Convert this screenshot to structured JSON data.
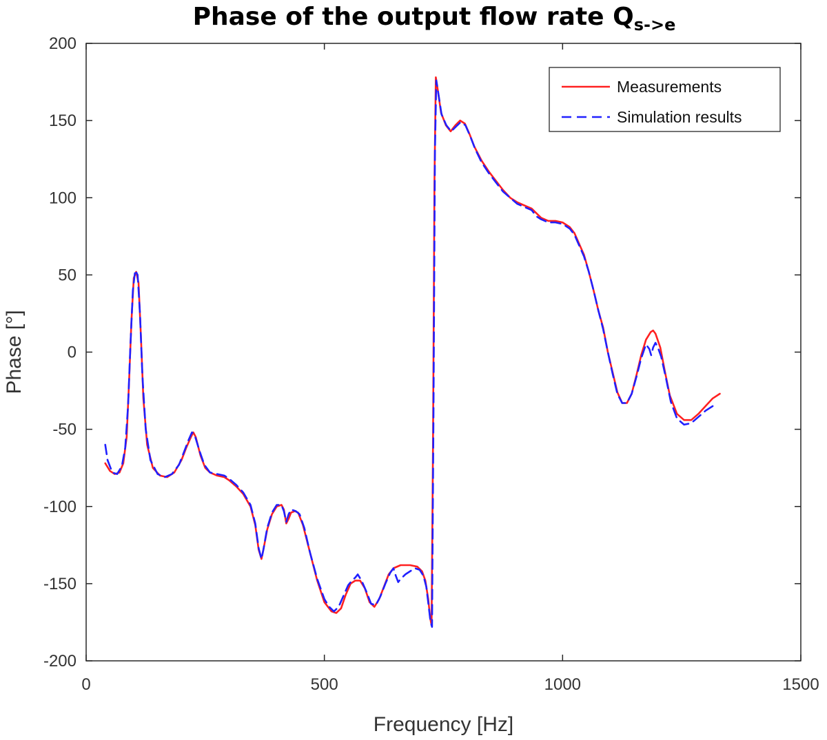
{
  "title": {
    "main": "Phase of the output flow rate Q",
    "subscript": "s->e"
  },
  "chart_data": {
    "type": "line",
    "xlabel": "Frequency [Hz]",
    "ylabel": "Phase [°]",
    "xlim": [
      0,
      1500
    ],
    "ylim": [
      -200,
      200
    ],
    "xticks": [
      0,
      500,
      1000,
      1500
    ],
    "yticks": [
      -200,
      -150,
      -100,
      -50,
      0,
      50,
      100,
      150,
      200
    ],
    "grid": false,
    "legend_position": "top-right",
    "series": [
      {
        "name": "Measurements",
        "color": "#ff2020",
        "style": "solid",
        "points": [
          [
            40,
            -72
          ],
          [
            50,
            -77
          ],
          [
            60,
            -79
          ],
          [
            70,
            -78
          ],
          [
            78,
            -72
          ],
          [
            85,
            -55
          ],
          [
            90,
            -20
          ],
          [
            95,
            20
          ],
          [
            100,
            48
          ],
          [
            105,
            52
          ],
          [
            110,
            45
          ],
          [
            115,
            10
          ],
          [
            120,
            -30
          ],
          [
            128,
            -60
          ],
          [
            140,
            -75
          ],
          [
            155,
            -80
          ],
          [
            170,
            -81
          ],
          [
            185,
            -78
          ],
          [
            200,
            -70
          ],
          [
            210,
            -62
          ],
          [
            220,
            -55
          ],
          [
            225,
            -52
          ],
          [
            230,
            -55
          ],
          [
            240,
            -67
          ],
          [
            250,
            -75
          ],
          [
            260,
            -78
          ],
          [
            275,
            -80
          ],
          [
            290,
            -81
          ],
          [
            300,
            -83
          ],
          [
            315,
            -87
          ],
          [
            330,
            -92
          ],
          [
            345,
            -100
          ],
          [
            355,
            -112
          ],
          [
            362,
            -128
          ],
          [
            368,
            -134
          ],
          [
            372,
            -128
          ],
          [
            380,
            -115
          ],
          [
            390,
            -105
          ],
          [
            400,
            -100
          ],
          [
            410,
            -99
          ],
          [
            415,
            -102
          ],
          [
            420,
            -111
          ],
          [
            425,
            -108
          ],
          [
            430,
            -104
          ],
          [
            438,
            -103
          ],
          [
            445,
            -104
          ],
          [
            455,
            -112
          ],
          [
            470,
            -130
          ],
          [
            485,
            -148
          ],
          [
            500,
            -162
          ],
          [
            515,
            -168
          ],
          [
            525,
            -169
          ],
          [
            535,
            -166
          ],
          [
            545,
            -157
          ],
          [
            555,
            -150
          ],
          [
            565,
            -148
          ],
          [
            575,
            -148
          ],
          [
            585,
            -153
          ],
          [
            595,
            -162
          ],
          [
            605,
            -165
          ],
          [
            615,
            -160
          ],
          [
            625,
            -152
          ],
          [
            635,
            -144
          ],
          [
            645,
            -140
          ],
          [
            660,
            -138
          ],
          [
            680,
            -138
          ],
          [
            695,
            -139
          ],
          [
            705,
            -142
          ],
          [
            712,
            -148
          ],
          [
            718,
            -160
          ],
          [
            722,
            -172
          ],
          [
            725,
            -177
          ],
          [
            728,
            -60
          ],
          [
            731,
            110
          ],
          [
            734,
            178
          ],
          [
            738,
            170
          ],
          [
            745,
            155
          ],
          [
            755,
            147
          ],
          [
            765,
            143
          ],
          [
            775,
            147
          ],
          [
            785,
            150
          ],
          [
            795,
            148
          ],
          [
            805,
            141
          ],
          [
            815,
            133
          ],
          [
            830,
            124
          ],
          [
            845,
            117
          ],
          [
            860,
            111
          ],
          [
            875,
            105
          ],
          [
            890,
            100
          ],
          [
            905,
            97
          ],
          [
            920,
            95
          ],
          [
            935,
            93
          ],
          [
            945,
            90
          ],
          [
            955,
            87
          ],
          [
            970,
            85
          ],
          [
            985,
            85
          ],
          [
            1000,
            84
          ],
          [
            1015,
            81
          ],
          [
            1025,
            77
          ],
          [
            1035,
            70
          ],
          [
            1045,
            63
          ],
          [
            1055,
            52
          ],
          [
            1065,
            40
          ],
          [
            1075,
            27
          ],
          [
            1085,
            16
          ],
          [
            1095,
            0
          ],
          [
            1105,
            -13
          ],
          [
            1115,
            -26
          ],
          [
            1125,
            -33
          ],
          [
            1135,
            -33
          ],
          [
            1145,
            -27
          ],
          [
            1155,
            -15
          ],
          [
            1165,
            -2
          ],
          [
            1175,
            8
          ],
          [
            1185,
            13
          ],
          [
            1190,
            14
          ],
          [
            1195,
            12
          ],
          [
            1205,
            3
          ],
          [
            1215,
            -13
          ],
          [
            1225,
            -28
          ],
          [
            1240,
            -40
          ],
          [
            1255,
            -44
          ],
          [
            1270,
            -44
          ],
          [
            1285,
            -40
          ],
          [
            1300,
            -35
          ],
          [
            1315,
            -30
          ],
          [
            1330,
            -27
          ]
        ]
      },
      {
        "name": "Simulation results",
        "color": "#2020ff",
        "style": "dashed",
        "points": [
          [
            40,
            -60
          ],
          [
            45,
            -70
          ],
          [
            55,
            -78
          ],
          [
            65,
            -79
          ],
          [
            75,
            -74
          ],
          [
            82,
            -62
          ],
          [
            88,
            -35
          ],
          [
            93,
            5
          ],
          [
            98,
            40
          ],
          [
            103,
            53
          ],
          [
            108,
            50
          ],
          [
            113,
            25
          ],
          [
            118,
            -15
          ],
          [
            125,
            -50
          ],
          [
            135,
            -70
          ],
          [
            150,
            -79
          ],
          [
            165,
            -81
          ],
          [
            180,
            -79
          ],
          [
            195,
            -73
          ],
          [
            205,
            -65
          ],
          [
            215,
            -57
          ],
          [
            222,
            -52
          ],
          [
            228,
            -54
          ],
          [
            238,
            -64
          ],
          [
            248,
            -73
          ],
          [
            260,
            -78
          ],
          [
            275,
            -79
          ],
          [
            290,
            -80
          ],
          [
            300,
            -82
          ],
          [
            315,
            -86
          ],
          [
            330,
            -91
          ],
          [
            345,
            -99
          ],
          [
            355,
            -111
          ],
          [
            362,
            -127
          ],
          [
            368,
            -134
          ],
          [
            372,
            -128
          ],
          [
            380,
            -114
          ],
          [
            390,
            -104
          ],
          [
            400,
            -99
          ],
          [
            410,
            -99
          ],
          [
            415,
            -103
          ],
          [
            420,
            -110
          ],
          [
            425,
            -105
          ],
          [
            430,
            -102
          ],
          [
            440,
            -103
          ],
          [
            448,
            -105
          ],
          [
            458,
            -114
          ],
          [
            470,
            -130
          ],
          [
            485,
            -147
          ],
          [
            500,
            -160
          ],
          [
            510,
            -165
          ],
          [
            520,
            -168
          ],
          [
            530,
            -165
          ],
          [
            540,
            -158
          ],
          [
            550,
            -151
          ],
          [
            558,
            -148
          ],
          [
            565,
            -146
          ],
          [
            570,
            -144
          ],
          [
            578,
            -148
          ],
          [
            588,
            -155
          ],
          [
            598,
            -163
          ],
          [
            608,
            -164
          ],
          [
            618,
            -158
          ],
          [
            628,
            -150
          ],
          [
            638,
            -143
          ],
          [
            645,
            -140
          ],
          [
            650,
            -145
          ],
          [
            655,
            -149
          ],
          [
            660,
            -147
          ],
          [
            670,
            -144
          ],
          [
            680,
            -142
          ],
          [
            690,
            -140
          ],
          [
            700,
            -141
          ],
          [
            708,
            -145
          ],
          [
            714,
            -152
          ],
          [
            719,
            -165
          ],
          [
            723,
            -175
          ],
          [
            726,
            -178
          ],
          [
            729,
            -40
          ],
          [
            732,
            130
          ],
          [
            735,
            176
          ],
          [
            739,
            168
          ],
          [
            746,
            154
          ],
          [
            756,
            147
          ],
          [
            766,
            143
          ],
          [
            776,
            146
          ],
          [
            786,
            149
          ],
          [
            796,
            147
          ],
          [
            806,
            140
          ],
          [
            816,
            132
          ],
          [
            830,
            123
          ],
          [
            845,
            116
          ],
          [
            860,
            110
          ],
          [
            875,
            104
          ],
          [
            890,
            100
          ],
          [
            905,
            96
          ],
          [
            920,
            94
          ],
          [
            935,
            92
          ],
          [
            945,
            88
          ],
          [
            955,
            86
          ],
          [
            970,
            84
          ],
          [
            985,
            84
          ],
          [
            1000,
            83
          ],
          [
            1015,
            80
          ],
          [
            1025,
            76
          ],
          [
            1035,
            69
          ],
          [
            1045,
            62
          ],
          [
            1055,
            52
          ],
          [
            1065,
            40
          ],
          [
            1075,
            27
          ],
          [
            1085,
            15
          ],
          [
            1095,
            0
          ],
          [
            1105,
            -14
          ],
          [
            1115,
            -27
          ],
          [
            1125,
            -33
          ],
          [
            1135,
            -33
          ],
          [
            1145,
            -27
          ],
          [
            1155,
            -16
          ],
          [
            1165,
            -4
          ],
          [
            1175,
            5
          ],
          [
            1182,
            2
          ],
          [
            1186,
            -2
          ],
          [
            1190,
            3
          ],
          [
            1195,
            6
          ],
          [
            1200,
            3
          ],
          [
            1207,
            -3
          ],
          [
            1217,
            -17
          ],
          [
            1227,
            -32
          ],
          [
            1240,
            -43
          ],
          [
            1255,
            -47
          ],
          [
            1270,
            -46
          ],
          [
            1285,
            -42
          ],
          [
            1300,
            -38
          ],
          [
            1315,
            -35
          ]
        ]
      }
    ]
  }
}
